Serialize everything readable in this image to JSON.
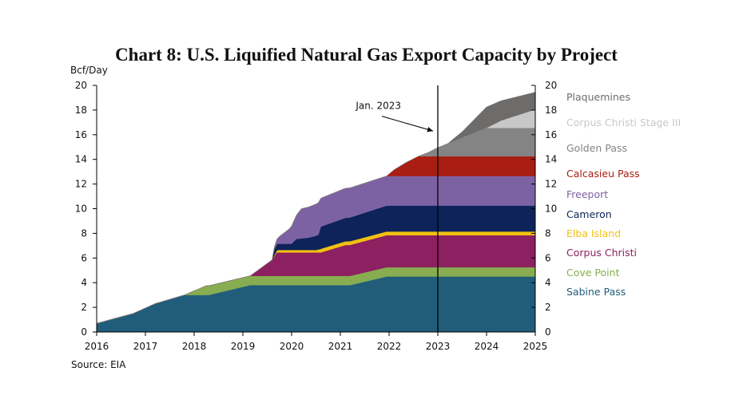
{
  "chart_data": {
    "type": "area",
    "stacked": true,
    "title": "Chart 8: U.S. Liquified Natural Gas Export Capacity by Project",
    "ylabel": "Bcf/Day",
    "source": "Source: EIA",
    "annotation": "Jan. 2023",
    "annotation_x": 2023,
    "xlim": [
      2016,
      2025
    ],
    "ylim": [
      0,
      20
    ],
    "x_ticks": [
      "2016",
      "2017",
      "2018",
      "2019",
      "2020",
      "2021",
      "2022",
      "2023",
      "2024",
      "2025"
    ],
    "y_ticks": [
      "0",
      "2",
      "4",
      "6",
      "8",
      "10",
      "12",
      "14",
      "16",
      "18",
      "20"
    ],
    "y_ticks_right": [
      "0",
      "2",
      "4",
      "6",
      "8",
      "10",
      "12",
      "14",
      "16",
      "18",
      "20"
    ],
    "grid": false,
    "legend_position": "right",
    "series": [
      {
        "name": "Sabine Pass",
        "color": "#215d7a",
        "points": [
          [
            2016,
            0.7
          ],
          [
            2016.75,
            1.5
          ],
          [
            2017.2,
            2.3
          ],
          [
            2017.8,
            3.0
          ],
          [
            2018.3,
            3.0
          ],
          [
            2019.15,
            3.8
          ],
          [
            2020.5,
            3.8
          ],
          [
            2021.2,
            3.8
          ],
          [
            2021.95,
            4.5
          ],
          [
            2025,
            4.5
          ]
        ]
      },
      {
        "name": "Cove Point",
        "color": "#88ad50",
        "points": [
          [
            2016,
            0
          ],
          [
            2017.8,
            0
          ],
          [
            2018.25,
            0.75
          ],
          [
            2025,
            0.75
          ]
        ]
      },
      {
        "name": "Corpus Christi",
        "color": "#8c2060",
        "points": [
          [
            2016,
            0
          ],
          [
            2018.25,
            0
          ],
          [
            2019.15,
            0
          ],
          [
            2019.6,
            1.3
          ],
          [
            2019.7,
            1.9
          ],
          [
            2020.6,
            1.9
          ],
          [
            2021.1,
            2.5
          ],
          [
            2021.95,
            2.6
          ],
          [
            2025,
            2.6
          ]
        ]
      },
      {
        "name": "Elba Island",
        "color": "#f2c10f",
        "points": [
          [
            2016,
            0
          ],
          [
            2019.6,
            0
          ],
          [
            2019.72,
            0.2
          ],
          [
            2020.5,
            0.2
          ],
          [
            2020.62,
            0.3
          ],
          [
            2025,
            0.3
          ]
        ]
      },
      {
        "name": "Cameron",
        "color": "#0d2359",
        "points": [
          [
            2016,
            0
          ],
          [
            2019.15,
            0
          ],
          [
            2019.6,
            0
          ],
          [
            2019.65,
            0.5
          ],
          [
            2020,
            0.5
          ],
          [
            2020.1,
            0.9
          ],
          [
            2020.35,
            1.0
          ],
          [
            2020.55,
            1.2
          ],
          [
            2020.6,
            1.8
          ],
          [
            2021.1,
            1.9
          ],
          [
            2021.95,
            2.1
          ],
          [
            2025,
            2.1
          ]
        ]
      },
      {
        "name": "Freeport",
        "color": "#7d62a3",
        "points": [
          [
            2016,
            0
          ],
          [
            2019.6,
            0
          ],
          [
            2019.75,
            0.6
          ],
          [
            2019.95,
            1.2
          ],
          [
            2020.2,
            2.4
          ],
          [
            2020.55,
            2.6
          ],
          [
            2020.6,
            2.3
          ],
          [
            2021.1,
            2.4
          ],
          [
            2021.95,
            2.4
          ],
          [
            2025,
            2.4
          ]
        ]
      },
      {
        "name": "Calcasieu Pass",
        "color": "#a91d12",
        "points": [
          [
            2016,
            0
          ],
          [
            2021.95,
            0
          ],
          [
            2022.1,
            0.5
          ],
          [
            2022.35,
            1.1
          ],
          [
            2022.6,
            1.6
          ],
          [
            2025,
            1.6
          ]
        ]
      },
      {
        "name": "Golden Pass",
        "color": "#848484",
        "points": [
          [
            2016,
            0
          ],
          [
            2022.6,
            0
          ],
          [
            2022.8,
            0.3
          ],
          [
            2023,
            0.7
          ],
          [
            2023.5,
            1.5
          ],
          [
            2024,
            2.3
          ],
          [
            2025,
            2.3
          ]
        ]
      },
      {
        "name": "Corpus Christi Stage III",
        "color": "#c8c8c8",
        "points": [
          [
            2016,
            0
          ],
          [
            2023.2,
            0
          ],
          [
            2024,
            0
          ],
          [
            2024.3,
            0.6
          ],
          [
            2025,
            1.5
          ]
        ]
      },
      {
        "name": "Plaquemines",
        "color": "#6e6b6b",
        "points": [
          [
            2016,
            0
          ],
          [
            2023.2,
            0
          ],
          [
            2023.5,
            0.5
          ],
          [
            2024,
            1.7
          ],
          [
            2025,
            1.4
          ]
        ]
      }
    ]
  }
}
